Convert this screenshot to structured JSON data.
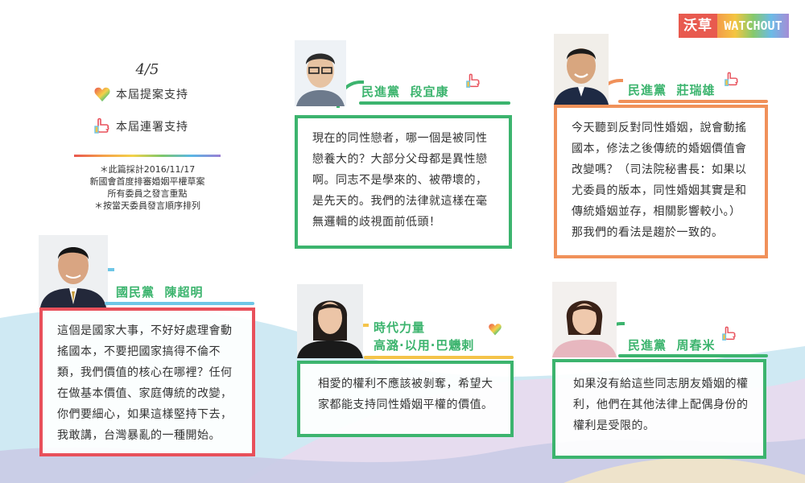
{
  "logo": {
    "text_a": "沃草",
    "text_b": "WATCHOUT"
  },
  "legend": {
    "fraction": "4/5",
    "proposal_label": "本屆提案支持",
    "cosign_label": "本屆連署支持",
    "notes": [
      "＊此篇採計2016/11/17",
      "新國會首度排審婚姻平權草案",
      "所有委員之發言重點",
      "＊按當天委員發言順序排列"
    ]
  },
  "colors": {
    "green": "#3cb46e",
    "orange": "#f0915a",
    "red": "#e8505b",
    "blue": "#6ec6e6",
    "yellow": "#f5c44a"
  },
  "legislators": [
    {
      "party": "民進黨",
      "name": "段宜康",
      "badge": "thumb-icon",
      "quote": "現在的同性戀者，哪一個是被同性戀養大的？大部分父母都是異性戀啊。同志不是學來的、被帶壞的，是先天的。我們的法律就這樣在毫無邏輯的歧視面前低頭！"
    },
    {
      "party": "民進黨",
      "name": "莊瑞雄",
      "badge": "thumb-icon",
      "quote": "今天聽到反對同性婚姻，說會動搖國本，修法之後傳統的婚姻價值會改變嗎？（司法院秘書長：如果以尤委員的版本，同性婚姻其實是和傳統婚姻並存，相關影響較小。）那我們的看法是趨於一致的。"
    },
    {
      "party": "國民黨",
      "name": "陳超明",
      "badge": "",
      "quote": "這個是國家大事，不好好處理會動搖國本，不要把國家搞得不倫不類，我們價值的核心在哪裡？任何在做基本價值、家庭傳統的改變，你們要細心，如果這樣堅持下去，我敢講，台灣暴亂的一種開始。"
    },
    {
      "party": "時代力量",
      "name": "高潞·以用·巴魕剌",
      "badge": "heart-icon",
      "quote": "相愛的權利不應該被剝奪，希望大家都能支持同性婚姻平權的價值。"
    },
    {
      "party": "民進黨",
      "name": "周春米",
      "badge": "thumb-icon",
      "quote": "如果沒有給這些同志朋友婚姻的權利，他們在其他法律上配偶身份的權利是受限的。"
    }
  ]
}
